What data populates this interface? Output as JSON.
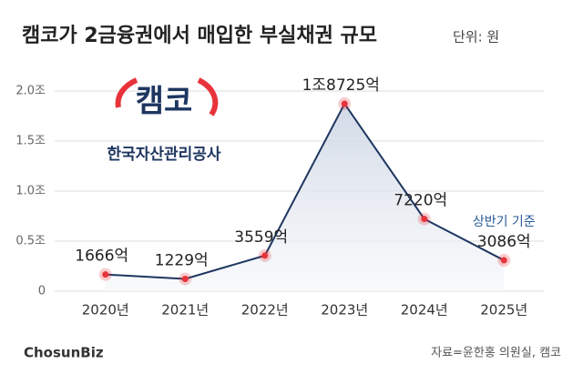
{
  "chart_data": {
    "type": "line",
    "title": "캠코가 2금융권에서 매입한 부실채권 규모",
    "unit_label": "단위: 원",
    "categories": [
      "2020년",
      "2021년",
      "2022년",
      "2023년",
      "2024년",
      "2025년"
    ],
    "values": [
      0.1666,
      0.1229,
      0.3559,
      1.8725,
      0.722,
      0.3086
    ],
    "value_labels": [
      "1666억",
      "1229억",
      "3559억",
      "1조8725억",
      "7220억",
      "3086억"
    ],
    "annotation": "상반기 기준",
    "color": "#1e3660",
    "point_color": "#e8333a",
    "area_color": "#dfe5ee",
    "ylim": [
      0,
      2.2
    ],
    "yticks": [
      0,
      {
        "value": 0.5,
        "label": "0.5조"
      },
      {
        "value": 1.0,
        "label": "1.0조"
      },
      {
        "value": 1.5,
        "label": "1.5조"
      },
      {
        "value": 2.0,
        "label": "2.0조"
      }
    ],
    "grid": true
  },
  "logo": {
    "name": "캠코",
    "subtitle": "한국자산관리공사"
  },
  "footer": {
    "brand": "ChosunBiz",
    "source": "자료=윤한홍 의원실, 캠코"
  }
}
